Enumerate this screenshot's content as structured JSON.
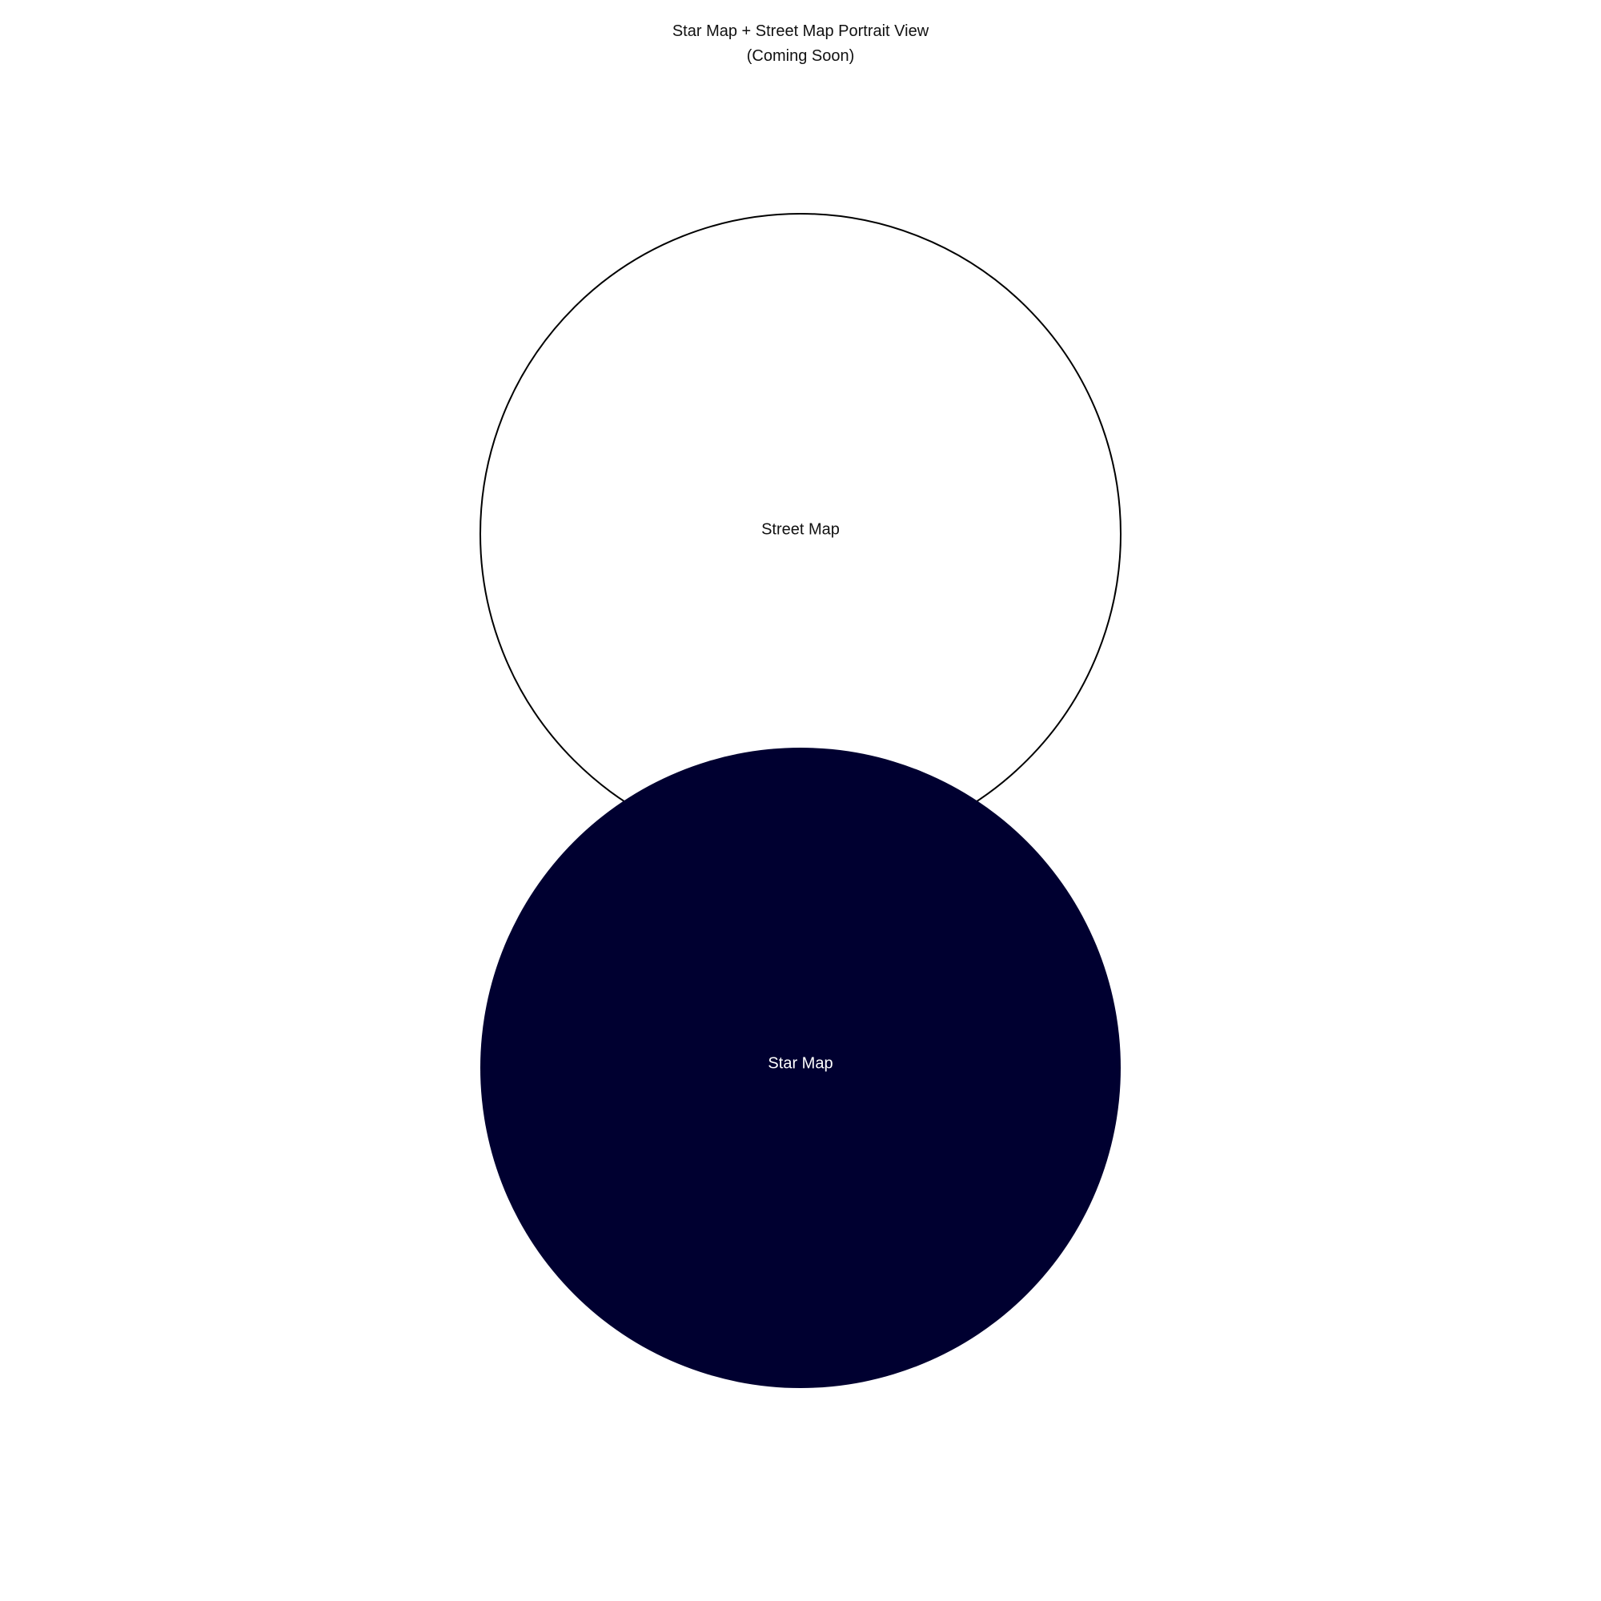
{
  "header": {
    "title": "Star Map + Street Map Portrait View",
    "subtitle": "(Coming Soon)"
  },
  "street_map": {
    "label": "Street Map",
    "fill": "#ffffff",
    "stroke": "#000000"
  },
  "star_map": {
    "label": "Star Map",
    "fill": "#000030",
    "text_color": "#ffffff"
  }
}
